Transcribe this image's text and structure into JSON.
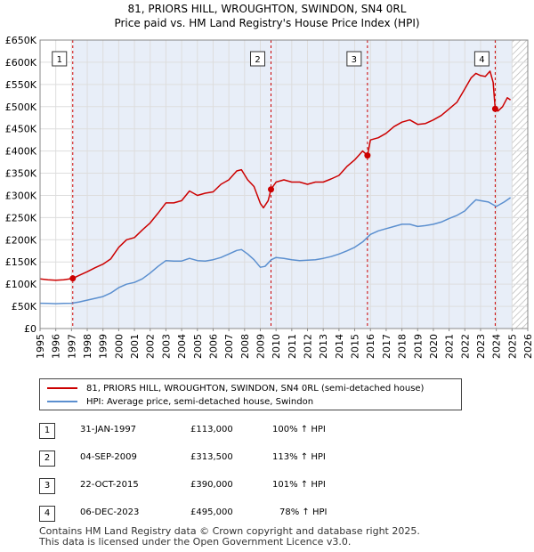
{
  "chart_data": {
    "type": "line",
    "title": "81, PRIORS HILL, WROUGHTON, SWINDON, SN4 0RL",
    "subtitle": "Price paid vs. HM Land Registry's House Price Index (HPI)",
    "xlabel": "",
    "ylabel": "",
    "xlim": [
      1995,
      2026
    ],
    "ylim": [
      0,
      650000
    ],
    "x_ticks": [
      "1995",
      "1996",
      "1997",
      "1998",
      "1999",
      "2000",
      "2001",
      "2002",
      "2003",
      "2004",
      "2005",
      "2006",
      "2007",
      "2008",
      "2009",
      "2010",
      "2011",
      "2012",
      "2013",
      "2014",
      "2015",
      "2016",
      "2017",
      "2018",
      "2019",
      "2020",
      "2021",
      "2022",
      "2023",
      "2024",
      "2025",
      "2026"
    ],
    "y_ticks": [
      {
        "value": 0,
        "label": "£0"
      },
      {
        "value": 50000,
        "label": "£50K"
      },
      {
        "value": 100000,
        "label": "£100K"
      },
      {
        "value": 150000,
        "label": "£150K"
      },
      {
        "value": 200000,
        "label": "£200K"
      },
      {
        "value": 250000,
        "label": "£250K"
      },
      {
        "value": 300000,
        "label": "£300K"
      },
      {
        "value": 350000,
        "label": "£350K"
      },
      {
        "value": 400000,
        "label": "£400K"
      },
      {
        "value": 450000,
        "label": "£450K"
      },
      {
        "value": 500000,
        "label": "£500K"
      },
      {
        "value": 550000,
        "label": "£550K"
      },
      {
        "value": 600000,
        "label": "£600K"
      },
      {
        "value": 650000,
        "label": "£650K"
      }
    ],
    "shade_from": 1997.08,
    "hatch_from": 2025.0,
    "series": [
      {
        "name": "81, PRIORS HILL, WROUGHTON, SWINDON, SN4 0RL (semi-detached house)",
        "color": "#cc0000",
        "x": [
          1995.0,
          1995.5,
          1996.0,
          1996.5,
          1997.08,
          1997.5,
          1998.0,
          1998.5,
          1999.0,
          1999.5,
          2000.0,
          2000.5,
          2001.0,
          2001.5,
          2002.0,
          2002.5,
          2003.0,
          2003.5,
          2004.0,
          2004.5,
          2005.0,
          2005.5,
          2006.0,
          2006.5,
          2007.0,
          2007.5,
          2007.8,
          2008.2,
          2008.6,
          2009.0,
          2009.2,
          2009.5,
          2009.68,
          2010.0,
          2010.5,
          2011.0,
          2011.5,
          2012.0,
          2012.5,
          2013.0,
          2013.5,
          2014.0,
          2014.5,
          2015.0,
          2015.3,
          2015.5,
          2015.81,
          2016.0,
          2016.5,
          2017.0,
          2017.5,
          2018.0,
          2018.5,
          2019.0,
          2019.5,
          2020.0,
          2020.5,
          2021.0,
          2021.5,
          2022.0,
          2022.4,
          2022.7,
          2023.0,
          2023.3,
          2023.6,
          2023.8,
          2023.93,
          2024.1,
          2024.4,
          2024.7,
          2024.9
        ],
        "values": [
          112000,
          110000,
          109000,
          110000,
          113000,
          120000,
          128000,
          137000,
          145000,
          157000,
          183000,
          200000,
          205000,
          222000,
          238000,
          260000,
          283000,
          283000,
          288000,
          310000,
          300000,
          305000,
          308000,
          325000,
          335000,
          355000,
          358000,
          335000,
          320000,
          282000,
          272000,
          288000,
          313500,
          330000,
          335000,
          330000,
          330000,
          325000,
          330000,
          330000,
          337000,
          345000,
          365000,
          380000,
          392000,
          400000,
          390000,
          425000,
          430000,
          440000,
          455000,
          465000,
          470000,
          460000,
          462000,
          470000,
          480000,
          495000,
          510000,
          540000,
          565000,
          575000,
          570000,
          568000,
          580000,
          555000,
          495000,
          490000,
          500000,
          520000,
          515000
        ]
      },
      {
        "name": "HPI: Average price, semi-detached house, Swindon",
        "color": "#5b8fcf",
        "x": [
          1995.0,
          1995.5,
          1996.0,
          1996.5,
          1997.0,
          1997.5,
          1998.0,
          1998.5,
          1999.0,
          1999.5,
          2000.0,
          2000.5,
          2001.0,
          2001.5,
          2002.0,
          2002.5,
          2003.0,
          2003.5,
          2004.0,
          2004.5,
          2005.0,
          2005.5,
          2006.0,
          2006.5,
          2007.0,
          2007.5,
          2007.8,
          2008.2,
          2008.6,
          2009.0,
          2009.3,
          2009.7,
          2010.0,
          2010.5,
          2011.0,
          2011.5,
          2012.0,
          2012.5,
          2013.0,
          2013.5,
          2014.0,
          2014.5,
          2015.0,
          2015.5,
          2016.0,
          2016.5,
          2017.0,
          2017.5,
          2018.0,
          2018.5,
          2019.0,
          2019.5,
          2020.0,
          2020.5,
          2021.0,
          2021.5,
          2022.0,
          2022.4,
          2022.7,
          2023.0,
          2023.5,
          2024.0,
          2024.5,
          2024.9
        ],
        "values": [
          57000,
          56500,
          56000,
          56500,
          57000,
          60000,
          64000,
          68000,
          72000,
          80000,
          92000,
          100000,
          104000,
          112000,
          125000,
          140000,
          153000,
          152000,
          152000,
          158000,
          153000,
          152000,
          155000,
          160000,
          168000,
          176000,
          178000,
          168000,
          155000,
          138000,
          140000,
          155000,
          160000,
          158000,
          155000,
          153000,
          154000,
          155000,
          158000,
          162000,
          168000,
          175000,
          183000,
          195000,
          212000,
          220000,
          225000,
          230000,
          235000,
          235000,
          230000,
          232000,
          235000,
          240000,
          248000,
          255000,
          265000,
          280000,
          290000,
          288000,
          285000,
          275000,
          285000,
          295000
        ]
      }
    ],
    "sales": [
      {
        "num": "1",
        "x": 1997.08,
        "price": 113000,
        "date": "31-JAN-1997",
        "price_label": "£113,000",
        "hpi": "100% ↑ HPI"
      },
      {
        "num": "2",
        "x": 2009.68,
        "price": 313500,
        "date": "04-SEP-2009",
        "price_label": "£313,500",
        "hpi": "113% ↑ HPI"
      },
      {
        "num": "3",
        "x": 2015.81,
        "price": 390000,
        "date": "22-OCT-2015",
        "price_label": "£390,000",
        "hpi": "101% ↑ HPI"
      },
      {
        "num": "4",
        "x": 2023.93,
        "price": 495000,
        "date": "06-DEC-2023",
        "price_label": "£495,000",
        "hpi": "78% ↑ HPI"
      }
    ]
  },
  "legend": {
    "property_label": "81, PRIORS HILL, WROUGHTON, SWINDON, SN4 0RL (semi-detached house)",
    "hpi_label": "HPI: Average price, semi-detached house, Swindon"
  },
  "footer": {
    "line1": "Contains HM Land Registry data © Crown copyright and database right 2025.",
    "line2": "This data is licensed under the Open Government Licence v3.0."
  }
}
